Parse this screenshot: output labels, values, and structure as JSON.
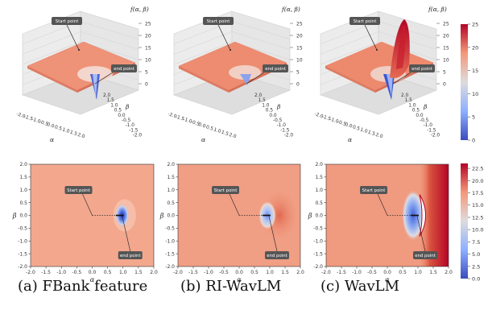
{
  "captions": [
    "(a) FBank feature",
    "(b) RI-WavLM",
    "(c) WavLM"
  ],
  "chart_data": [
    {
      "type": "surface3d",
      "panel": "a",
      "xlabel": "α",
      "ylabel": "β",
      "zlabel": "f(α, β)",
      "xticks": [
        "-2.0",
        "-1.5",
        "-1.0",
        "-0.5",
        "0.0",
        "0.5",
        "1.0",
        "1.5",
        "2.0"
      ],
      "yticks": [
        "-2.0",
        "-1.5",
        "-1.0",
        "-0.5",
        "0.0",
        "0.5",
        "1.0",
        "1.5",
        "2.0"
      ],
      "zticks": [
        "0",
        "5",
        "10",
        "15",
        "20",
        "25"
      ],
      "zlim": [
        0,
        25
      ],
      "plateau_value": 18,
      "min_location": [
        1.0,
        0.0
      ],
      "min_value": 0,
      "annotations": [
        "Start point",
        "end point"
      ]
    },
    {
      "type": "surface3d",
      "panel": "b",
      "xlabel": "α",
      "ylabel": "β",
      "zlabel": "f(α, β)",
      "xticks": [
        "-2.0",
        "-1.5",
        "-1.0",
        "-0.5",
        "0.0",
        "0.5",
        "1.0",
        "1.5",
        "2.0"
      ],
      "yticks": [
        "-2.0",
        "-1.5",
        "-1.0",
        "-0.5",
        "0.0",
        "0.5",
        "1.0",
        "1.5",
        "2.0"
      ],
      "zticks": [
        "0",
        "5",
        "10",
        "15",
        "20",
        "25"
      ],
      "zlim": [
        0,
        25
      ],
      "plateau_value": 19,
      "min_location": [
        1.0,
        0.0
      ],
      "min_value": 1,
      "annotations": [
        "Start point",
        "end point"
      ]
    },
    {
      "type": "surface3d",
      "panel": "c",
      "xlabel": "α",
      "ylabel": "β",
      "zlabel": "f(α, β)",
      "xticks": [
        "-2.0",
        "-1.5",
        "-1.0",
        "-0.5",
        "0.0",
        "0.5",
        "1.0",
        "1.5",
        "2.0"
      ],
      "yticks": [
        "-2.0",
        "-1.5",
        "-1.0",
        "-0.5",
        "0.0",
        "0.5",
        "1.0",
        "1.5",
        "2.0"
      ],
      "zticks": [
        "0",
        "5",
        "10",
        "15",
        "20",
        "25"
      ],
      "zlim": [
        0,
        25
      ],
      "plateau_value": 19,
      "min_location": [
        1.0,
        0.0
      ],
      "min_value": 0,
      "ridge_value": 25,
      "annotations": [
        "Start point",
        "end point"
      ]
    },
    {
      "type": "heatmap",
      "panel": "a",
      "xlabel": "α",
      "ylabel": "β",
      "xlim": [
        -2.0,
        2.0
      ],
      "ylim": [
        -2.0,
        2.0
      ],
      "xticks": [
        "-2.0",
        "-1.5",
        "-1.0",
        "-0.5",
        "0.0",
        "0.5",
        "1.0",
        "1.5",
        "2.0"
      ],
      "yticks": [
        "-2.0",
        "-1.5",
        "-1.0",
        "-0.5",
        "0.0",
        "0.5",
        "1.0",
        "1.5",
        "2.0"
      ],
      "start_point": [
        0.0,
        0.0
      ],
      "end_point": [
        1.0,
        0.0
      ],
      "annotations": [
        "Start point",
        "end point"
      ]
    },
    {
      "type": "heatmap",
      "panel": "b",
      "xlabel": "α",
      "ylabel": "β",
      "xlim": [
        -2.0,
        2.0
      ],
      "ylim": [
        -2.0,
        2.0
      ],
      "xticks": [
        "-2.0",
        "-1.5",
        "-1.0",
        "-0.5",
        "0.0",
        "0.5",
        "1.0",
        "1.5",
        "2.0"
      ],
      "yticks": [
        "-2.0",
        "-1.5",
        "-1.0",
        "-0.5",
        "0.0",
        "0.5",
        "1.0",
        "1.5",
        "2.0"
      ],
      "start_point": [
        0.0,
        0.0
      ],
      "end_point": [
        1.0,
        0.0
      ],
      "annotations": [
        "Start point",
        "end point"
      ]
    },
    {
      "type": "heatmap",
      "panel": "c",
      "xlabel": "α",
      "ylabel": "β",
      "xlim": [
        -2.0,
        2.0
      ],
      "ylim": [
        -2.0,
        2.0
      ],
      "xticks": [
        "-2.0",
        "-1.5",
        "-1.0",
        "-0.5",
        "0.0",
        "0.5",
        "1.0",
        "1.5",
        "2.0"
      ],
      "yticks": [
        "-2.0",
        "-1.5",
        "-1.0",
        "-0.5",
        "0.0",
        "0.5",
        "1.0",
        "1.5",
        "2.0"
      ],
      "start_point": [
        0.0,
        0.0
      ],
      "end_point": [
        1.0,
        0.0
      ],
      "annotations": [
        "Start point",
        "end point"
      ]
    }
  ],
  "colorbars": [
    {
      "for": "surface",
      "ticks": [
        "0",
        "5",
        "10",
        "15",
        "20",
        "25"
      ],
      "range": [
        0,
        25
      ],
      "colors": [
        "#3b4cc0",
        "#dddcdc",
        "#b40426"
      ]
    },
    {
      "for": "heatmap",
      "ticks": [
        "0.0",
        "2.5",
        "5.0",
        "7.5",
        "10.0",
        "12.5",
        "15.0",
        "17.5",
        "20.0",
        "22.5"
      ],
      "range": [
        0,
        23.5
      ],
      "colors": [
        "#3b4cc0",
        "#dddcdc",
        "#b40426"
      ]
    }
  ]
}
